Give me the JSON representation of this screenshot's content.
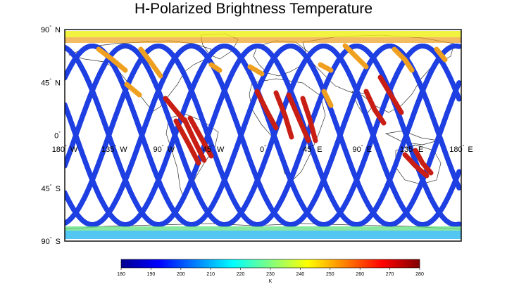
{
  "title": "H-Polarized Brightness Temperature",
  "lat_labels": [
    {
      "deg": "90",
      "hem": "N",
      "value": 90
    },
    {
      "deg": "45",
      "hem": "N",
      "value": 45
    },
    {
      "deg": "0",
      "hem": "",
      "value": 0
    },
    {
      "deg": "45",
      "hem": "S",
      "value": -45
    },
    {
      "deg": "90",
      "hem": "S",
      "value": -90
    }
  ],
  "lon_labels": [
    {
      "deg": "180",
      "hem": "W",
      "value": -180
    },
    {
      "deg": "135",
      "hem": "W",
      "value": -135
    },
    {
      "deg": "90",
      "hem": "W",
      "value": -90
    },
    {
      "deg": "45",
      "hem": "W",
      "value": -45
    },
    {
      "deg": "0",
      "hem": "",
      "value": 0
    },
    {
      "deg": "45",
      "hem": "E",
      "value": 45
    },
    {
      "deg": "90",
      "hem": "E",
      "value": 90
    },
    {
      "deg": "135",
      "hem": "E",
      "value": 135
    },
    {
      "deg": "180",
      "hem": "E",
      "value": 180
    }
  ],
  "colorbar": {
    "min": 180,
    "max": 280,
    "ticks": [
      "180",
      "190",
      "200",
      "210",
      "220",
      "230",
      "240",
      "250",
      "260",
      "270",
      "280"
    ],
    "unit": "K",
    "colors": [
      "#00008f",
      "#0000ff",
      "#0080ff",
      "#00ffff",
      "#80ff80",
      "#ffff00",
      "#ff8000",
      "#ff0000",
      "#800000"
    ]
  },
  "swath_colors": {
    "ocean": "#1f3fe0",
    "land_hot": "#c81e14",
    "land_warm": "#f0a020",
    "ice": "#40c0f0",
    "coast": "#60e080",
    "tundra": "#f0f020"
  }
}
